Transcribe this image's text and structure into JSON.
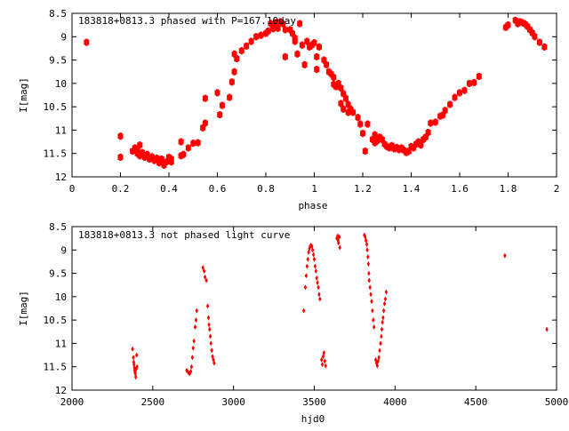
{
  "chart_data": [
    {
      "type": "scatter",
      "title": "183818+0813.3 phased with P=167.10day",
      "xlabel": "phase",
      "ylabel": "I[mag]",
      "xlim": [
        0,
        2
      ],
      "ylim": [
        12,
        8.5
      ],
      "y_inverted": true,
      "grid": false,
      "xticks": [
        "0",
        "0.2",
        "0.4",
        "0.6",
        "0.8",
        "1",
        "1.2",
        "1.4",
        "1.6",
        "1.8",
        "2"
      ],
      "yticks": [
        "8.5",
        "9",
        "9.5",
        "10",
        "10.5",
        "11",
        "11.5",
        "12"
      ],
      "marker": "filled-cross",
      "color": "#ff0000",
      "series": [
        {
          "points": [
            [
              0.06,
              9.12
            ],
            [
              0.2,
              11.13
            ],
            [
              0.2,
              11.58
            ],
            [
              0.25,
              11.45
            ],
            [
              0.26,
              11.38
            ],
            [
              0.27,
              11.42
            ],
            [
              0.27,
              11.5
            ],
            [
              0.28,
              11.32
            ],
            [
              0.28,
              11.55
            ],
            [
              0.29,
              11.48
            ],
            [
              0.3,
              11.58
            ],
            [
              0.31,
              11.52
            ],
            [
              0.32,
              11.62
            ],
            [
              0.33,
              11.57
            ],
            [
              0.34,
              11.65
            ],
            [
              0.35,
              11.6
            ],
            [
              0.36,
              11.7
            ],
            [
              0.37,
              11.66
            ],
            [
              0.37,
              11.62
            ],
            [
              0.38,
              11.75
            ],
            [
              0.39,
              11.68
            ],
            [
              0.4,
              11.58
            ],
            [
              0.41,
              11.68
            ],
            [
              0.41,
              11.62
            ],
            [
              0.45,
              11.25
            ],
            [
              0.45,
              11.55
            ],
            [
              0.46,
              11.52
            ],
            [
              0.48,
              11.38
            ],
            [
              0.5,
              11.28
            ],
            [
              0.52,
              11.27
            ],
            [
              0.54,
              10.95
            ],
            [
              0.55,
              10.85
            ],
            [
              0.55,
              10.32
            ],
            [
              0.6,
              10.2
            ],
            [
              0.61,
              10.67
            ],
            [
              0.62,
              10.47
            ],
            [
              0.65,
              10.3
            ],
            [
              0.66,
              9.97
            ],
            [
              0.67,
              9.75
            ],
            [
              0.67,
              9.37
            ],
            [
              0.68,
              9.47
            ],
            [
              0.7,
              9.3
            ],
            [
              0.72,
              9.2
            ],
            [
              0.74,
              9.1
            ],
            [
              0.76,
              9.0
            ],
            [
              0.78,
              8.97
            ],
            [
              0.8,
              8.93
            ],
            [
              0.81,
              8.88
            ],
            [
              0.82,
              8.72
            ],
            [
              0.83,
              8.83
            ],
            [
              0.84,
              8.7
            ],
            [
              0.85,
              8.82
            ],
            [
              0.86,
              8.68
            ],
            [
              0.87,
              8.72
            ],
            [
              0.88,
              8.85
            ],
            [
              0.88,
              9.43
            ],
            [
              0.9,
              8.85
            ],
            [
              0.91,
              8.93
            ],
            [
              0.92,
              9.1
            ],
            [
              0.92,
              9.03
            ],
            [
              0.93,
              9.37
            ],
            [
              0.94,
              8.72
            ],
            [
              0.95,
              9.18
            ],
            [
              0.96,
              9.6
            ],
            [
              0.97,
              9.1
            ],
            [
              0.98,
              9.22
            ],
            [
              0.99,
              9.18
            ],
            [
              1.0,
              9.13
            ],
            [
              1.01,
              9.43
            ],
            [
              1.01,
              9.7
            ],
            [
              1.02,
              9.22
            ],
            [
              1.04,
              9.5
            ],
            [
              1.05,
              9.6
            ],
            [
              1.06,
              9.75
            ],
            [
              1.07,
              9.8
            ],
            [
              1.08,
              9.87
            ],
            [
              1.08,
              10.02
            ],
            [
              1.09,
              10.07
            ],
            [
              1.1,
              10.0
            ],
            [
              1.11,
              10.1
            ],
            [
              1.11,
              10.43
            ],
            [
              1.12,
              10.22
            ],
            [
              1.12,
              10.55
            ],
            [
              1.13,
              10.32
            ],
            [
              1.14,
              10.45
            ],
            [
              1.14,
              10.62
            ],
            [
              1.15,
              10.55
            ],
            [
              1.16,
              10.62
            ],
            [
              1.18,
              10.73
            ],
            [
              1.19,
              10.87
            ],
            [
              1.2,
              11.07
            ],
            [
              1.21,
              11.45
            ],
            [
              1.22,
              10.87
            ],
            [
              1.24,
              11.2
            ],
            [
              1.25,
              11.1
            ],
            [
              1.25,
              11.27
            ],
            [
              1.26,
              11.23
            ],
            [
              1.27,
              11.15
            ],
            [
              1.28,
              11.2
            ],
            [
              1.29,
              11.3
            ],
            [
              1.3,
              11.35
            ],
            [
              1.31,
              11.38
            ],
            [
              1.32,
              11.33
            ],
            [
              1.33,
              11.4
            ],
            [
              1.34,
              11.37
            ],
            [
              1.35,
              11.42
            ],
            [
              1.36,
              11.38
            ],
            [
              1.37,
              11.43
            ],
            [
              1.38,
              11.48
            ],
            [
              1.39,
              11.45
            ],
            [
              1.4,
              11.35
            ],
            [
              1.41,
              11.38
            ],
            [
              1.42,
              11.3
            ],
            [
              1.43,
              11.25
            ],
            [
              1.44,
              11.32
            ],
            [
              1.45,
              11.2
            ],
            [
              1.46,
              11.15
            ],
            [
              1.47,
              11.05
            ],
            [
              1.48,
              10.85
            ],
            [
              1.5,
              10.83
            ],
            [
              1.52,
              10.7
            ],
            [
              1.53,
              10.68
            ],
            [
              1.54,
              10.58
            ],
            [
              1.56,
              10.45
            ],
            [
              1.58,
              10.3
            ],
            [
              1.6,
              10.2
            ],
            [
              1.62,
              10.15
            ],
            [
              1.64,
              10.0
            ],
            [
              1.66,
              9.98
            ],
            [
              1.68,
              9.85
            ],
            [
              1.79,
              8.8
            ],
            [
              1.8,
              8.75
            ],
            [
              1.83,
              8.65
            ],
            [
              1.84,
              8.72
            ],
            [
              1.85,
              8.68
            ],
            [
              1.86,
              8.7
            ],
            [
              1.87,
              8.73
            ],
            [
              1.88,
              8.78
            ],
            [
              1.89,
              8.85
            ],
            [
              1.9,
              8.92
            ],
            [
              1.91,
              9.0
            ],
            [
              1.93,
              9.12
            ],
            [
              1.95,
              9.22
            ]
          ]
        }
      ]
    },
    {
      "type": "scatter",
      "title": "183818+0813.3 not phased light curve",
      "xlabel": "hjd0",
      "ylabel": "I[mag]",
      "xlim": [
        2000,
        5000
      ],
      "ylim": [
        12,
        8.5
      ],
      "y_inverted": true,
      "grid": false,
      "xticks": [
        "2000",
        "2500",
        "3000",
        "3500",
        "4000",
        "4500",
        "5000"
      ],
      "yticks": [
        "8.5",
        "9",
        "9.5",
        "10",
        "10.5",
        "11",
        "11.5",
        "12"
      ],
      "marker": "diamond",
      "color": "#ff0000",
      "series": [
        {
          "points": [
            [
              2375,
              11.12
            ],
            [
              2380,
              11.3
            ],
            [
              2382,
              11.4
            ],
            [
              2384,
              11.45
            ],
            [
              2386,
              11.52
            ],
            [
              2388,
              11.58
            ],
            [
              2390,
              11.62
            ],
            [
              2392,
              11.65
            ],
            [
              2395,
              11.72
            ],
            [
              2397,
              11.55
            ],
            [
              2400,
              11.25
            ],
            [
              2402,
              11.5
            ],
            [
              2710,
              11.58
            ],
            [
              2720,
              11.62
            ],
            [
              2728,
              11.65
            ],
            [
              2735,
              11.6
            ],
            [
              2740,
              11.5
            ],
            [
              2745,
              11.3
            ],
            [
              2750,
              11.1
            ],
            [
              2755,
              10.95
            ],
            [
              2762,
              10.65
            ],
            [
              2768,
              10.5
            ],
            [
              2772,
              10.3
            ],
            [
              2810,
              9.38
            ],
            [
              2818,
              9.45
            ],
            [
              2823,
              9.58
            ],
            [
              2832,
              9.65
            ],
            [
              2840,
              10.2
            ],
            [
              2845,
              10.45
            ],
            [
              2848,
              10.6
            ],
            [
              2852,
              10.7
            ],
            [
              2856,
              10.85
            ],
            [
              2860,
              11.0
            ],
            [
              2865,
              11.15
            ],
            [
              2870,
              11.28
            ],
            [
              2875,
              11.35
            ],
            [
              2880,
              11.42
            ],
            [
              3435,
              10.3
            ],
            [
              3445,
              9.8
            ],
            [
              3450,
              9.55
            ],
            [
              3455,
              9.35
            ],
            [
              3460,
              9.2
            ],
            [
              3465,
              9.05
            ],
            [
              3470,
              8.97
            ],
            [
              3475,
              8.92
            ],
            [
              3480,
              8.9
            ],
            [
              3485,
              8.92
            ],
            [
              3490,
              9.0
            ],
            [
              3495,
              9.1
            ],
            [
              3500,
              9.2
            ],
            [
              3505,
              9.35
            ],
            [
              3510,
              9.45
            ],
            [
              3515,
              9.6
            ],
            [
              3520,
              9.7
            ],
            [
              3525,
              9.8
            ],
            [
              3530,
              9.95
            ],
            [
              3535,
              10.05
            ],
            [
              3545,
              11.35
            ],
            [
              3550,
              11.45
            ],
            [
              3555,
              11.28
            ],
            [
              3560,
              11.2
            ],
            [
              3565,
              11.38
            ],
            [
              3570,
              11.48
            ],
            [
              3640,
              8.75
            ],
            [
              3645,
              8.7
            ],
            [
              3648,
              8.8
            ],
            [
              3650,
              8.85
            ],
            [
              3655,
              8.72
            ],
            [
              3658,
              8.95
            ],
            [
              3810,
              8.68
            ],
            [
              3815,
              8.72
            ],
            [
              3820,
              8.8
            ],
            [
              3825,
              8.88
            ],
            [
              3828,
              9.0
            ],
            [
              3832,
              9.15
            ],
            [
              3835,
              9.3
            ],
            [
              3838,
              9.5
            ],
            [
              3840,
              9.65
            ],
            [
              3845,
              9.8
            ],
            [
              3850,
              9.95
            ],
            [
              3855,
              10.1
            ],
            [
              3860,
              10.3
            ],
            [
              3865,
              10.5
            ],
            [
              3870,
              10.65
            ],
            [
              3880,
              11.35
            ],
            [
              3885,
              11.42
            ],
            [
              3890,
              11.48
            ],
            [
              3895,
              11.38
            ],
            [
              3900,
              11.3
            ],
            [
              3905,
              11.15
            ],
            [
              3910,
              11.0
            ],
            [
              3915,
              10.85
            ],
            [
              3918,
              10.7
            ],
            [
              3922,
              10.55
            ],
            [
              3926,
              10.45
            ],
            [
              3930,
              10.3
            ],
            [
              3935,
              10.15
            ],
            [
              3940,
              10.05
            ],
            [
              3945,
              9.9
            ],
            [
              4680,
              9.12
            ],
            [
              4940,
              10.7
            ]
          ]
        }
      ]
    }
  ]
}
